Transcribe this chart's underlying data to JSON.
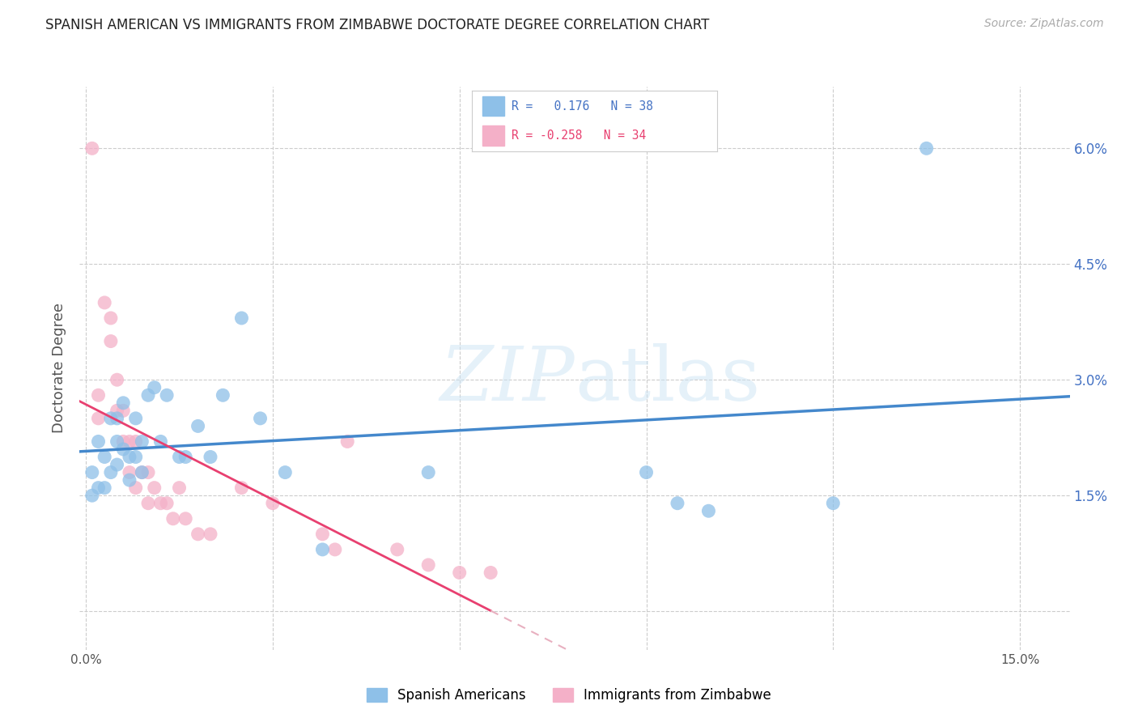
{
  "title": "SPANISH AMERICAN VS IMMIGRANTS FROM ZIMBABWE DOCTORATE DEGREE CORRELATION CHART",
  "source": "Source: ZipAtlas.com",
  "ylabel": "Doctorate Degree",
  "x_ticks": [
    0.0,
    0.03,
    0.06,
    0.09,
    0.12,
    0.15
  ],
  "y_ticks": [
    0.0,
    0.015,
    0.03,
    0.045,
    0.06
  ],
  "y_tick_labels": [
    "",
    "1.5%",
    "3.0%",
    "4.5%",
    "6.0%"
  ],
  "xlim": [
    -0.001,
    0.158
  ],
  "ylim": [
    -0.005,
    0.068
  ],
  "background_color": "#ffffff",
  "grid_color": "#cccccc",
  "blue_color": "#8ec0e8",
  "pink_color": "#f4b0c8",
  "blue_line_color": "#4488cc",
  "pink_line_color": "#e84070",
  "pink_dash_color": "#e8b0c0",
  "legend_R1": "0.176",
  "legend_N1": "38",
  "legend_R2": "-0.258",
  "legend_N2": "34",
  "legend_label1": "Spanish Americans",
  "legend_label2": "Immigrants from Zimbabwe",
  "blue_scatter_x": [
    0.001,
    0.001,
    0.002,
    0.002,
    0.003,
    0.003,
    0.004,
    0.004,
    0.005,
    0.005,
    0.005,
    0.006,
    0.006,
    0.007,
    0.007,
    0.008,
    0.008,
    0.009,
    0.009,
    0.01,
    0.011,
    0.012,
    0.013,
    0.015,
    0.016,
    0.018,
    0.02,
    0.022,
    0.025,
    0.028,
    0.032,
    0.038,
    0.055,
    0.09,
    0.095,
    0.1,
    0.12,
    0.135
  ],
  "blue_scatter_y": [
    0.018,
    0.015,
    0.016,
    0.022,
    0.02,
    0.016,
    0.025,
    0.018,
    0.025,
    0.022,
    0.019,
    0.027,
    0.021,
    0.02,
    0.017,
    0.025,
    0.02,
    0.022,
    0.018,
    0.028,
    0.029,
    0.022,
    0.028,
    0.02,
    0.02,
    0.024,
    0.02,
    0.028,
    0.038,
    0.025,
    0.018,
    0.008,
    0.018,
    0.018,
    0.014,
    0.013,
    0.014,
    0.06
  ],
  "pink_scatter_x": [
    0.001,
    0.002,
    0.002,
    0.003,
    0.004,
    0.004,
    0.005,
    0.005,
    0.006,
    0.006,
    0.007,
    0.007,
    0.008,
    0.008,
    0.009,
    0.01,
    0.01,
    0.011,
    0.012,
    0.013,
    0.014,
    0.015,
    0.016,
    0.018,
    0.02,
    0.025,
    0.03,
    0.038,
    0.04,
    0.042,
    0.05,
    0.055,
    0.06,
    0.065
  ],
  "pink_scatter_y": [
    0.06,
    0.025,
    0.028,
    0.04,
    0.038,
    0.035,
    0.03,
    0.026,
    0.026,
    0.022,
    0.022,
    0.018,
    0.022,
    0.016,
    0.018,
    0.018,
    0.014,
    0.016,
    0.014,
    0.014,
    0.012,
    0.016,
    0.012,
    0.01,
    0.01,
    0.016,
    0.014,
    0.01,
    0.008,
    0.022,
    0.008,
    0.006,
    0.005,
    0.005
  ]
}
